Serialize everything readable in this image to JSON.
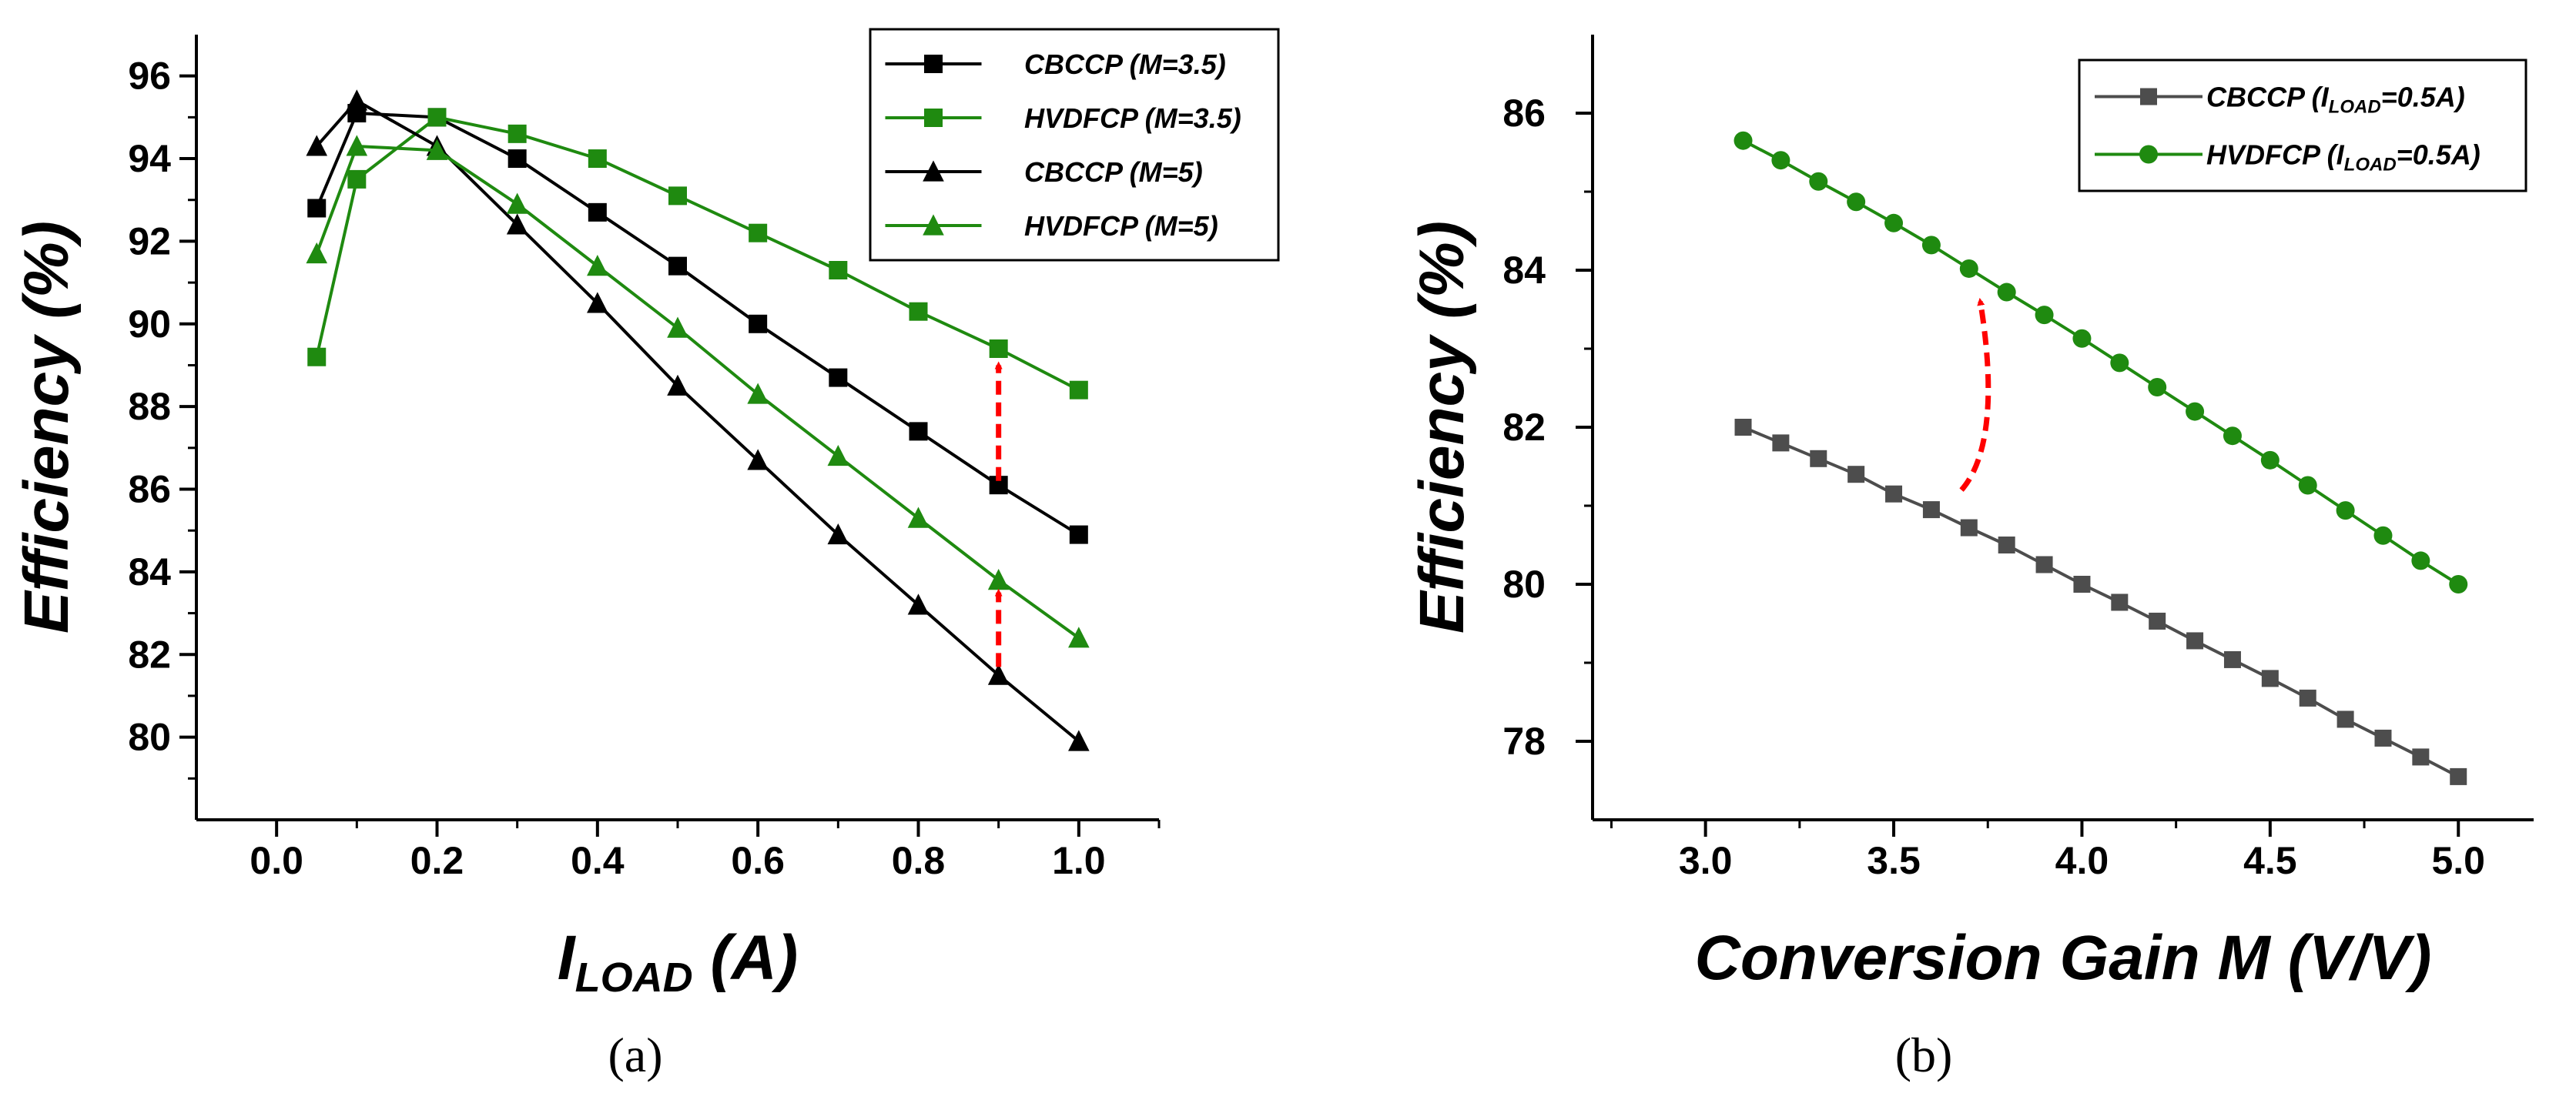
{
  "chart_data": [
    {
      "type": "line",
      "panel": "a",
      "caption": "(a)",
      "xlabel": "I",
      "xlabel_sub": "LOAD",
      "xlabel_unit": " (A)",
      "ylabel": "Efficiency (%)",
      "xlim": [
        -0.1,
        1.1
      ],
      "ylim": [
        78.0,
        97.0
      ],
      "xticks": [
        0.0,
        0.2,
        0.4,
        0.6,
        0.8,
        1.0
      ],
      "xtick_labels": [
        "0.0",
        "0.2",
        "0.4",
        "0.6",
        "0.8",
        "1.0"
      ],
      "yticks": [
        80,
        82,
        84,
        86,
        88,
        90,
        92,
        94,
        96
      ],
      "ytick_labels": [
        "80",
        "82",
        "84",
        "86",
        "88",
        "90",
        "92",
        "94",
        "96"
      ],
      "legend_position": "top-right",
      "series": [
        {
          "name": "CBCCP (M=3.5)",
          "legend_main": "CBCCP",
          "legend_sub": "",
          "legend_rest": " (M=3.5)",
          "color": "#000000",
          "marker": "square",
          "x": [
            0.05,
            0.1,
            0.2,
            0.3,
            0.4,
            0.5,
            0.6,
            0.7,
            0.8,
            0.9,
            1.0
          ],
          "values": [
            92.8,
            95.1,
            95.0,
            94.0,
            92.7,
            91.4,
            90.0,
            88.7,
            87.4,
            86.1,
            84.9
          ]
        },
        {
          "name": "HVDFCP (M=3.5)",
          "legend_main": "HVDFCP",
          "legend_sub": "",
          "legend_rest": " (M=3.5)",
          "color": "#1f8a10",
          "marker": "square",
          "x": [
            0.05,
            0.1,
            0.2,
            0.3,
            0.4,
            0.5,
            0.6,
            0.7,
            0.8,
            0.9,
            1.0
          ],
          "values": [
            89.2,
            93.5,
            95.0,
            94.6,
            94.0,
            93.1,
            92.2,
            91.3,
            90.3,
            89.4,
            88.4
          ]
        },
        {
          "name": "CBCCP (M=5)",
          "legend_main": "CBCCP",
          "legend_sub": "",
          "legend_rest": " (M=5)",
          "color": "#000000",
          "marker": "triangle",
          "x": [
            0.05,
            0.1,
            0.2,
            0.3,
            0.4,
            0.5,
            0.6,
            0.7,
            0.8,
            0.9,
            1.0
          ],
          "values": [
            94.3,
            95.4,
            94.3,
            92.4,
            90.5,
            88.5,
            86.7,
            84.9,
            83.2,
            81.5,
            79.9
          ]
        },
        {
          "name": "HVDFCP (M=5)",
          "legend_main": "HVDFCP",
          "legend_sub": "",
          "legend_rest": " (M=5)",
          "color": "#1f8a10",
          "marker": "triangle",
          "x": [
            0.05,
            0.1,
            0.2,
            0.3,
            0.4,
            0.5,
            0.6,
            0.7,
            0.8,
            0.9,
            1.0
          ],
          "values": [
            91.7,
            94.3,
            94.2,
            92.9,
            91.4,
            89.9,
            88.3,
            86.8,
            85.3,
            83.8,
            82.4
          ]
        }
      ],
      "annotations": [
        {
          "type": "dashed-arrow",
          "color": "#ff0000",
          "from": [
            0.9,
            86.2
          ],
          "to": [
            0.9,
            89.0
          ]
        },
        {
          "type": "dashed-arrow",
          "color": "#ff0000",
          "from": [
            0.9,
            81.7
          ],
          "to": [
            0.9,
            83.5
          ]
        }
      ]
    },
    {
      "type": "line",
      "panel": "b",
      "caption": "(b)",
      "xlabel": "Conversion Gain M (V/V)",
      "ylabel": "Efficiency (%)",
      "xlim": [
        2.7,
        5.2
      ],
      "ylim": [
        77.0,
        87.0
      ],
      "xticks": [
        3.0,
        3.5,
        4.0,
        4.5,
        5.0
      ],
      "xtick_labels": [
        "3.0",
        "3.5",
        "4.0",
        "4.5",
        "5.0"
      ],
      "yticks": [
        78,
        80,
        82,
        84,
        86
      ],
      "ytick_labels": [
        "78",
        "80",
        "82",
        "84",
        "86"
      ],
      "legend_position": "top-right",
      "series": [
        {
          "name": "CBCCP (ILOAD=0.5A)",
          "legend_main": "CBCCP (I",
          "legend_sub": "LOAD",
          "legend_rest": "=0.5A)",
          "color": "#4d4d4d",
          "marker": "square",
          "x": [
            3.1,
            3.2,
            3.3,
            3.4,
            3.5,
            3.6,
            3.7,
            3.8,
            3.9,
            4.0,
            4.1,
            4.2,
            4.3,
            4.4,
            4.5,
            4.6,
            4.7,
            4.8,
            4.9,
            5.0
          ],
          "values": [
            82.0,
            81.8,
            81.6,
            81.4,
            81.15,
            80.95,
            80.72,
            80.5,
            80.25,
            80.0,
            79.77,
            79.53,
            79.28,
            79.04,
            78.8,
            78.55,
            78.28,
            78.04,
            77.8,
            77.55
          ]
        },
        {
          "name": "HVDFCP (ILOAD=0.5A)",
          "legend_main": "HVDFCP (I",
          "legend_sub": "LOAD",
          "legend_rest": "=0.5A)",
          "color": "#1f8a10",
          "marker": "circle",
          "x": [
            3.1,
            3.2,
            3.3,
            3.4,
            3.5,
            3.6,
            3.7,
            3.8,
            3.9,
            4.0,
            4.1,
            4.2,
            4.3,
            4.4,
            4.5,
            4.6,
            4.7,
            4.8,
            4.9,
            5.0
          ],
          "values": [
            85.65,
            85.4,
            85.13,
            84.87,
            84.6,
            84.32,
            84.02,
            83.72,
            83.43,
            83.13,
            82.82,
            82.51,
            82.2,
            81.89,
            81.58,
            81.26,
            80.94,
            80.62,
            80.3,
            80.0
          ]
        }
      ],
      "annotations": [
        {
          "type": "curved-dashed-arrow",
          "color": "#ff0000",
          "from": [
            3.68,
            81.2
          ],
          "to": [
            3.73,
            83.6
          ]
        }
      ]
    }
  ]
}
